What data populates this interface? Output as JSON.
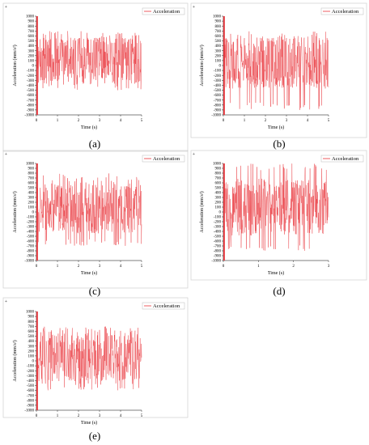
{
  "chart_data": [
    {
      "panel": "a",
      "type": "line",
      "caption": "(a)",
      "xlabel": "Time (s)",
      "ylabel": "Acceleration (mm/s²)",
      "xlim": [
        0,
        5
      ],
      "ylim": [
        -1000,
        1000
      ],
      "xticks": [
        0,
        1,
        2,
        3,
        4,
        5
      ],
      "yticks": [
        1000,
        900,
        800,
        700,
        600,
        500,
        400,
        300,
        200,
        100,
        0,
        -100,
        -200,
        -300,
        -400,
        -500,
        -600,
        -700,
        -800,
        -900,
        -1000
      ],
      "legend": {
        "placement": "top-right"
      },
      "series": [
        {
          "name": "Acceleration",
          "color": "#e8333a",
          "x_range": [
            0,
            5
          ],
          "baseline": 100,
          "band": [
            -400,
            650
          ],
          "peak_min": -500,
          "peak_max": 700,
          "initial_spike_min": -1000,
          "initial_spike_max": 1000
        }
      ]
    },
    {
      "panel": "b",
      "type": "line",
      "caption": "(b)",
      "xlabel": "Time (s)",
      "ylabel": "Acceleration (mm/s²)",
      "xlim": [
        0,
        5
      ],
      "ylim": [
        -1000,
        1000
      ],
      "xticks": [
        0,
        1,
        2,
        3,
        4,
        5
      ],
      "yticks": [
        1000,
        900,
        800,
        700,
        600,
        500,
        400,
        300,
        200,
        100,
        0,
        -100,
        -200,
        -300,
        -400,
        -500,
        -600,
        -700,
        -800,
        -900,
        -1000
      ],
      "legend": {
        "placement": "top-right"
      },
      "series": [
        {
          "name": "Acceleration",
          "color": "#e8333a",
          "x_range": [
            0,
            5
          ],
          "baseline": 50,
          "band": [
            -500,
            650
          ],
          "peak_min": -900,
          "peak_max": 700,
          "initial_spike_min": -1000,
          "initial_spike_max": 1000
        }
      ]
    },
    {
      "panel": "c",
      "type": "line",
      "caption": "(c)",
      "xlabel": "Time (s)",
      "ylabel": "Acceleration (mm/s²)",
      "xlim": [
        0,
        5
      ],
      "ylim": [
        -1000,
        1000
      ],
      "xticks": [
        0,
        1,
        2,
        3,
        4,
        5
      ],
      "yticks": [
        1000,
        900,
        800,
        700,
        600,
        500,
        400,
        300,
        200,
        100,
        0,
        -100,
        -200,
        -300,
        -400,
        -500,
        -600,
        -700,
        -800,
        -900,
        -1000
      ],
      "legend": {
        "placement": "top-right"
      },
      "series": [
        {
          "name": "Acceleration",
          "color": "#e8333a",
          "x_range": [
            0,
            5
          ],
          "baseline": 100,
          "band": [
            -500,
            700
          ],
          "peak_min": -700,
          "peak_max": 800,
          "initial_spike_min": -1000,
          "initial_spike_max": 1000
        }
      ]
    },
    {
      "panel": "d",
      "type": "line",
      "caption": "(d)",
      "xlabel": "Time (s)",
      "ylabel": "Acceleration (mm/s²)",
      "xlim": [
        0,
        3
      ],
      "ylim": [
        -1000,
        1000
      ],
      "xticks": [
        0,
        1,
        2,
        3
      ],
      "yticks": [
        1000,
        900,
        800,
        700,
        600,
        500,
        400,
        300,
        200,
        100,
        0,
        -100,
        -200,
        -300,
        -400,
        -500,
        -600,
        -700,
        -800,
        -900,
        -1000
      ],
      "legend": {
        "placement": "top-right"
      },
      "series": [
        {
          "name": "Acceleration",
          "color": "#e8333a",
          "x_range": [
            0,
            3
          ],
          "baseline": 100,
          "band": [
            -500,
            800
          ],
          "peak_min": -800,
          "peak_max": 1000,
          "initial_spike_min": -1000,
          "initial_spike_max": 1000
        }
      ]
    },
    {
      "panel": "e",
      "type": "line",
      "caption": "(e)",
      "xlabel": "Time (s)",
      "ylabel": "Acceleration (mm/s²)",
      "xlim": [
        0,
        5
      ],
      "ylim": [
        -1000,
        1000
      ],
      "xticks": [
        0,
        1,
        2,
        3,
        4,
        5
      ],
      "yticks": [
        1000,
        900,
        800,
        700,
        600,
        500,
        400,
        300,
        200,
        100,
        0,
        -100,
        -200,
        -300,
        -400,
        -500,
        -600,
        -700,
        -800,
        -900,
        -1000
      ],
      "legend": {
        "placement": "top-right"
      },
      "series": [
        {
          "name": "Acceleration",
          "color": "#e8333a",
          "x_range": [
            0,
            5
          ],
          "baseline": 100,
          "band": [
            -500,
            650
          ],
          "peak_min": -600,
          "peak_max": 700,
          "initial_spike_min": -1000,
          "initial_spike_max": 1000
        }
      ]
    }
  ]
}
